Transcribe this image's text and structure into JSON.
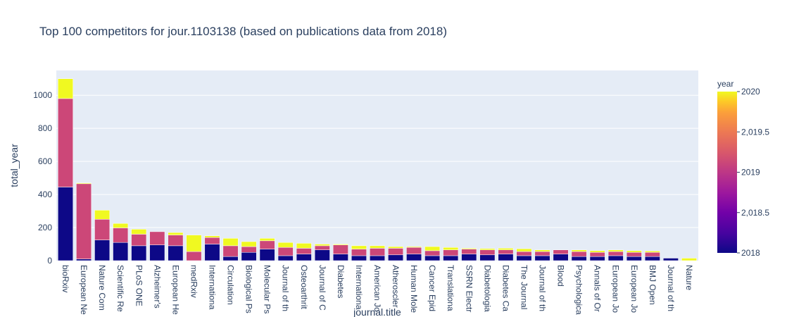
{
  "chart_data": {
    "type": "bar",
    "title": "Top 100 competitors for jour.1103138 (based on publications data from 2018)",
    "xlabel": "journal.title",
    "ylabel": "total_year",
    "ylim": [
      0,
      1150
    ],
    "yticks": [
      0,
      200,
      400,
      600,
      800,
      1000
    ],
    "grid": true,
    "stacked": true,
    "categories": [
      "bioRxiv",
      "European Ne",
      "Nature Com",
      "Scientific Re",
      "PLoS ONE",
      "Alzheimer's",
      "European He",
      "medRxiv",
      "Internationa",
      "Circulation",
      "Biological Ps",
      "Molecular Ps",
      "Journal of th",
      "Osteoarthrit",
      "Journal of C",
      "Diabetes",
      "Internationa",
      "American Jo",
      "Atheroscler",
      "Human Mole",
      "Cancer Epid",
      "Translationa",
      "SSRN Electr",
      "Diabetologia",
      "Diabetes Ca",
      "The Journal",
      "Journal of th",
      "Blood",
      "Psychologica",
      "Annals of Or",
      "European Jo",
      "European Jo",
      "BMJ Open",
      "Journal of th",
      "Nature"
    ],
    "series": [
      {
        "year": 2018,
        "color": "#0d0887",
        "values": [
          445,
          10,
          125,
          110,
          90,
          95,
          90,
          0,
          100,
          25,
          50,
          70,
          30,
          40,
          65,
          40,
          30,
          30,
          35,
          40,
          30,
          30,
          40,
          35,
          40,
          30,
          30,
          40,
          25,
          25,
          30,
          25,
          25,
          15,
          0
        ]
      },
      {
        "year": 2019,
        "color": "#cc4778",
        "values": [
          535,
          455,
          125,
          88,
          70,
          80,
          65,
          55,
          40,
          65,
          35,
          50,
          50,
          35,
          25,
          55,
          40,
          45,
          40,
          40,
          30,
          35,
          30,
          30,
          25,
          25,
          25,
          25,
          30,
          25,
          25,
          25,
          25,
          0,
          0
        ]
      },
      {
        "year": 2020,
        "color": "#f0f921",
        "values": [
          120,
          5,
          55,
          27,
          30,
          0,
          15,
          100,
          10,
          45,
          30,
          15,
          30,
          30,
          10,
          5,
          20,
          15,
          10,
          5,
          25,
          15,
          5,
          8,
          10,
          17,
          10,
          0,
          10,
          10,
          10,
          10,
          8,
          0,
          15
        ]
      }
    ],
    "colorbar": {
      "title": "year",
      "ticks": [
        "2020",
        "2,019.5",
        "2019",
        "2,018.5",
        "2018"
      ]
    }
  }
}
